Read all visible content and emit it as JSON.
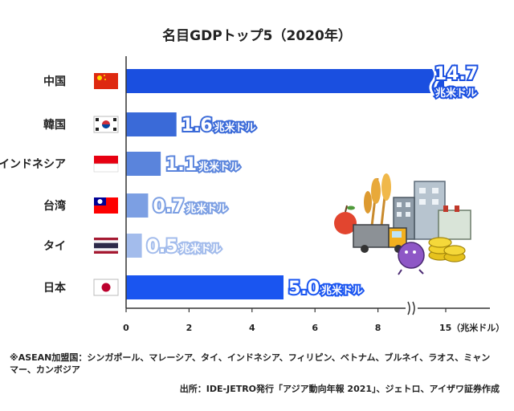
{
  "chart_data": {
    "type": "bar",
    "orientation": "horizontal",
    "title": "名目GDPトップ5（2020年）",
    "categories": [
      "中国",
      "韓国",
      "インドネシア",
      "台湾",
      "タイ",
      "日本"
    ],
    "values": [
      14.7,
      1.6,
      1.1,
      0.7,
      0.5,
      5.0
    ],
    "value_labels": [
      "14.7",
      "1.6",
      "1.1",
      "0.7",
      "0.5",
      "5.0"
    ],
    "value_unit": "兆米ドル",
    "bar_colors": [
      "#1a4fe0",
      "#3a6ad8",
      "#5a84dc",
      "#7c9fe3",
      "#a3bcec",
      "#1a55f0"
    ],
    "axis_break_after": 8.6,
    "xlim": [
      0,
      15
    ],
    "xticks": [
      0,
      2,
      4,
      6,
      8,
      15
    ],
    "xtick_labels": [
      "0",
      "2",
      "4",
      "6",
      "8",
      "15（兆米ドル）"
    ],
    "flags": [
      "china-flag-icon",
      "korea-flag-icon",
      "indonesia-flag-icon",
      "taiwan-flag-icon",
      "thailand-flag-icon",
      "japan-flag-icon"
    ],
    "grid": false,
    "legend": "none"
  },
  "notes": {
    "footnote": "※ASEAN加盟国：シンガポール、マレーシア、タイ、インドネシア、フィリピン、ベトナム、ブルネイ、ラオス、ミャンマー、カンボジア",
    "source": "出所：IDE-JETRO発行「アジア動向年報 2021」、ジェトロ、アイザワ証券作成"
  },
  "illustration": [
    "apple-icon",
    "wheat-icon",
    "buildings-icon",
    "truck-icon",
    "coins-icon",
    "virus-icon"
  ]
}
